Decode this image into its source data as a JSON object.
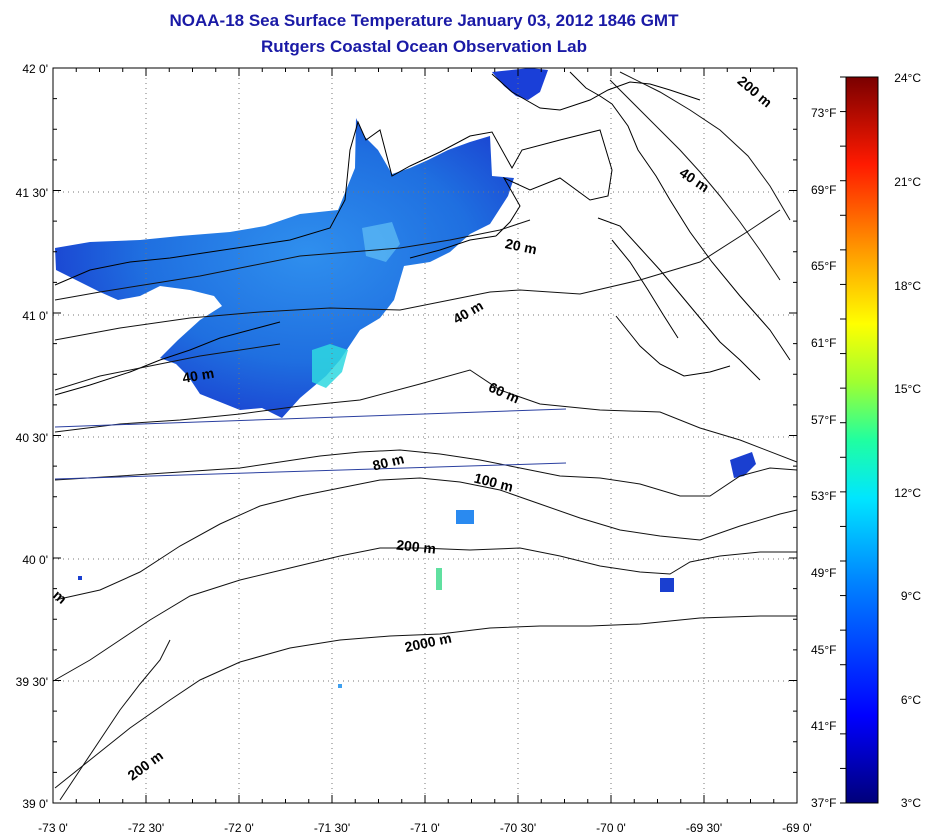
{
  "header": {
    "title_line1": "NOAA-18 Sea Surface Temperature January 03, 2012 1846 GMT",
    "title_line2": "Rutgers Coastal Ocean Observation Lab"
  },
  "colors": {
    "title": "#1a1aa6",
    "sst_cold": "#1010c0",
    "sst_mid": "#1f7fe6",
    "sst_warm": "#30e0d0",
    "track": "#2a3fa0"
  },
  "map": {
    "lon_ticks": [
      "-73 0'",
      "-72 30'",
      "-72 0'",
      "-71 30'",
      "-71 0'",
      "-70 30'",
      "-70 0'",
      "-69 30'",
      "-69 0'"
    ],
    "lat_ticks": [
      "42 0'",
      "41 30'",
      "41 0'",
      "40 30'",
      "40 0'",
      "39 30'",
      "39 0'"
    ],
    "contour_labels": [
      "20 m",
      "40 m",
      "40 m",
      "60 m",
      "80 m",
      "100 m",
      "200 m",
      "2000 m",
      "200 m",
      "200 m",
      "40 m",
      "m"
    ]
  },
  "colorbar": {
    "celsius": [
      "24°C",
      "21°C",
      "18°C",
      "15°C",
      "12°C",
      "9°C",
      "6°C",
      "3°C"
    ],
    "fahrenheit": [
      "73°F",
      "69°F",
      "65°F",
      "61°F",
      "57°F",
      "53°F",
      "49°F",
      "45°F",
      "41°F",
      "37°F"
    ]
  }
}
